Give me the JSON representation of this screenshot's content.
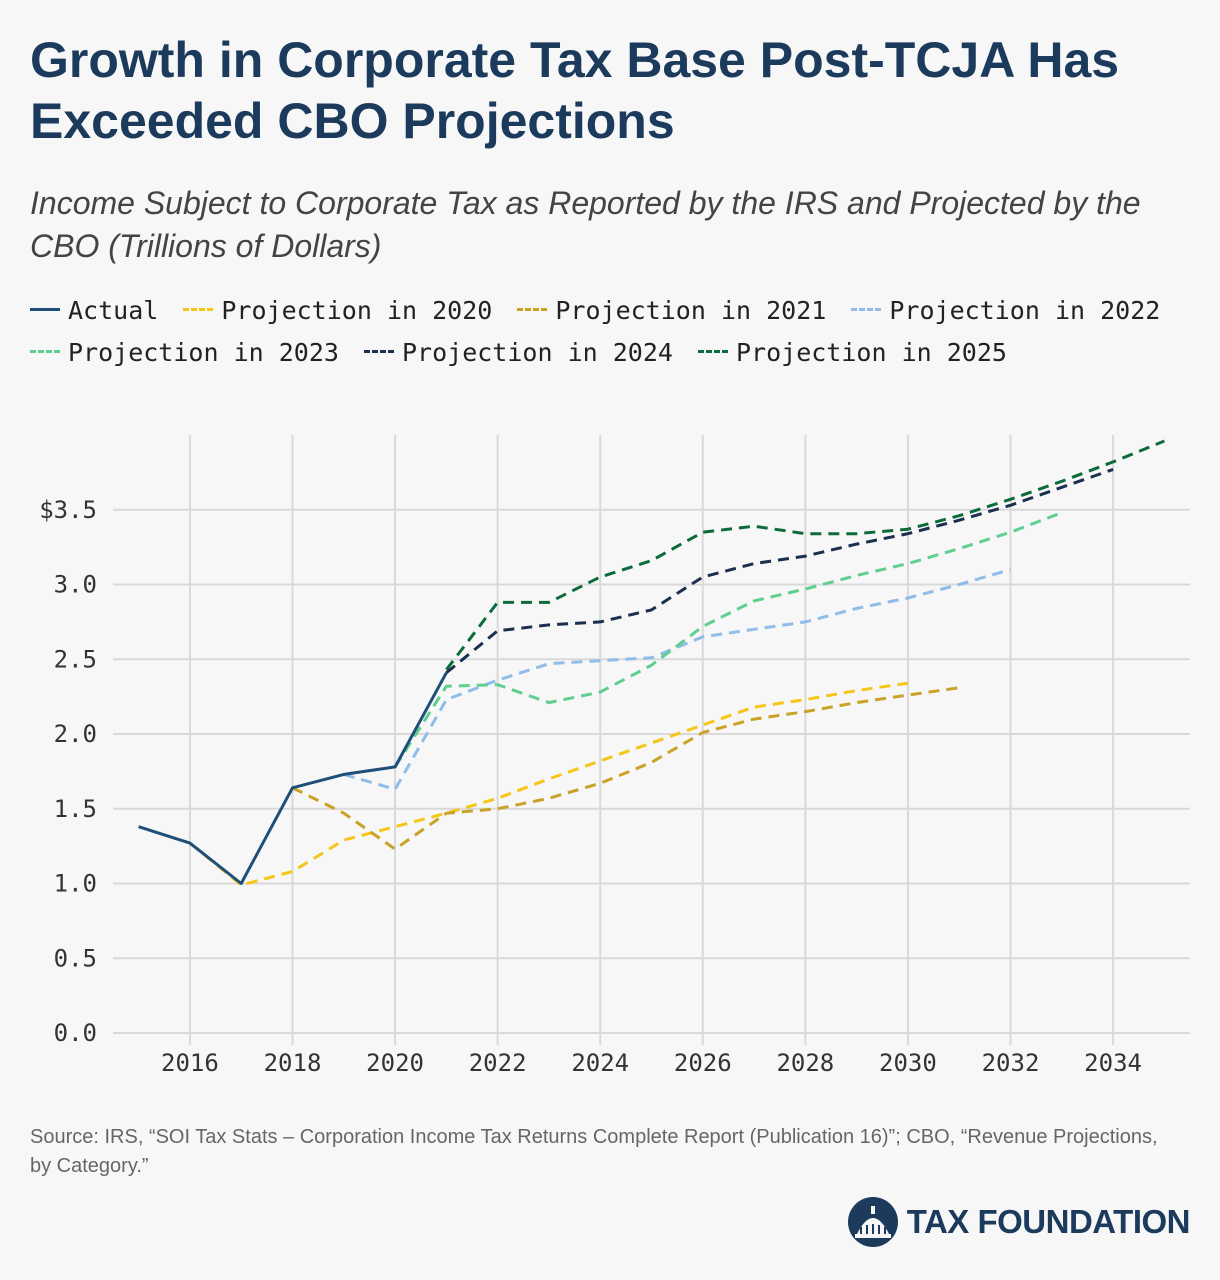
{
  "header": {
    "title": "Growth in Corporate Tax Base Post-TCJA Has Exceeded CBO Projections",
    "subtitle": "Income Subject to Corporate Tax as Reported by the IRS and Projected by the CBO (Trillions of Dollars)"
  },
  "footer": {
    "source": "Source: IRS, “SOI Tax Stats – Corporation Income Tax Returns Complete Report (Publication 16)”; CBO, “Revenue Projections, by Category.”",
    "logo_text": "TAX FOUNDATION",
    "logo_icon": "capitol-dome-icon"
  },
  "colors": {
    "title": "#1b3a5c",
    "grid": "#d9d9d9",
    "background": "#f7f7f7"
  },
  "chart_data": {
    "type": "line",
    "xlim": [
      2014.5,
      2035.5
    ],
    "ylim": [
      0,
      4
    ],
    "x_ticks": [
      2016,
      2018,
      2020,
      2022,
      2024,
      2026,
      2028,
      2030,
      2032,
      2034
    ],
    "y_ticks": [
      0,
      0.5,
      1,
      1.5,
      2,
      2.5,
      3,
      3.5
    ],
    "y_tick_labels": [
      "0.0",
      "0.5",
      "1.0",
      "1.5",
      "2.0",
      "2.5",
      "3.0",
      "$3.5"
    ],
    "legend_position": "top",
    "grid": true,
    "series": [
      {
        "name": "Actual",
        "color": "#1f4e79",
        "dashed": false,
        "x": [
          2015,
          2016,
          2017,
          2018,
          2019,
          2020,
          2021
        ],
        "y": [
          1.38,
          1.27,
          1.0,
          1.64,
          1.73,
          1.78,
          2.41
        ]
      },
      {
        "name": "Projection in 2020",
        "color": "#f5c518",
        "dashed": true,
        "x": [
          2016,
          2017,
          2018,
          2019,
          2020,
          2021,
          2022,
          2023,
          2024,
          2025,
          2026,
          2027,
          2028,
          2029,
          2030
        ],
        "y": [
          1.27,
          0.99,
          1.08,
          1.29,
          1.38,
          1.47,
          1.57,
          1.7,
          1.82,
          1.94,
          2.06,
          2.18,
          2.23,
          2.29,
          2.34
        ]
      },
      {
        "name": "Projection in 2021",
        "color": "#c9a227",
        "dashed": true,
        "x": [
          2018,
          2019,
          2020,
          2021,
          2022,
          2023,
          2024,
          2025,
          2026,
          2027,
          2028,
          2029,
          2030,
          2031
        ],
        "y": [
          1.64,
          1.47,
          1.23,
          1.47,
          1.5,
          1.57,
          1.67,
          1.81,
          2.01,
          2.1,
          2.15,
          2.21,
          2.26,
          2.31
        ]
      },
      {
        "name": "Projection in 2022",
        "color": "#8fbce8",
        "dashed": true,
        "x": [
          2019,
          2020,
          2021,
          2022,
          2023,
          2024,
          2025,
          2026,
          2027,
          2028,
          2029,
          2030,
          2031,
          2032
        ],
        "y": [
          1.73,
          1.63,
          2.23,
          2.36,
          2.47,
          2.49,
          2.51,
          2.65,
          2.7,
          2.75,
          2.84,
          2.91,
          3.0,
          3.1
        ]
      },
      {
        "name": "Projection in 2023",
        "color": "#5fcf8f",
        "dashed": true,
        "x": [
          2020,
          2021,
          2022,
          2023,
          2024,
          2025,
          2026,
          2027,
          2028,
          2029,
          2030,
          2031,
          2032,
          2033
        ],
        "y": [
          1.78,
          2.32,
          2.33,
          2.21,
          2.28,
          2.46,
          2.72,
          2.89,
          2.97,
          3.06,
          3.14,
          3.24,
          3.35,
          3.48
        ]
      },
      {
        "name": "Projection in 2024",
        "color": "#1b2f4e",
        "dashed": true,
        "x": [
          2021,
          2022,
          2023,
          2024,
          2025,
          2026,
          2027,
          2028,
          2029,
          2030,
          2031,
          2032,
          2033,
          2034
        ],
        "y": [
          2.41,
          2.69,
          2.73,
          2.75,
          2.83,
          3.05,
          3.14,
          3.19,
          3.27,
          3.34,
          3.43,
          3.53,
          3.65,
          3.77
        ]
      },
      {
        "name": "Projection in 2025",
        "color": "#0b6b3a",
        "dashed": true,
        "x": [
          2021,
          2022,
          2023,
          2024,
          2025,
          2026,
          2027,
          2028,
          2029,
          2030,
          2031,
          2032,
          2033,
          2034,
          2035
        ],
        "y": [
          2.43,
          2.88,
          2.88,
          3.05,
          3.16,
          3.35,
          3.39,
          3.34,
          3.34,
          3.37,
          3.46,
          3.57,
          3.69,
          3.82,
          3.96
        ]
      }
    ]
  }
}
